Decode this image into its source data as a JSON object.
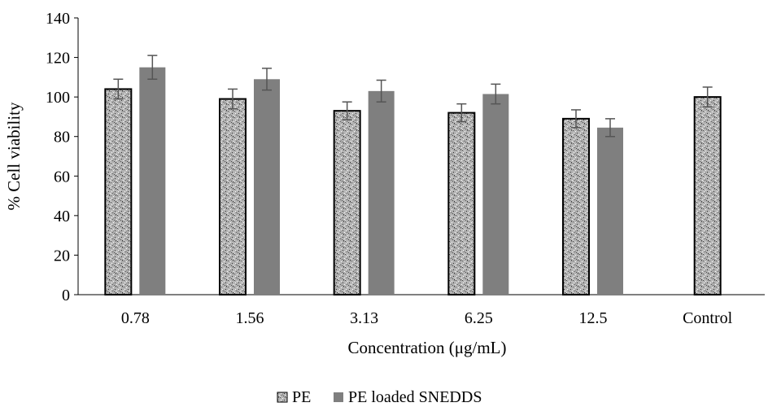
{
  "chart_data": {
    "type": "bar",
    "xlabel": "Concentration (μg/mL)",
    "ylabel": "% Cell viability",
    "ylim": [
      0,
      140
    ],
    "yticks": [
      0,
      20,
      40,
      60,
      80,
      100,
      120,
      140
    ],
    "categories": [
      "0.78",
      "1.56",
      "3.13",
      "6.25",
      "12.5",
      "Control"
    ],
    "grid": false,
    "legend_position": "bottom-center",
    "series": [
      {
        "name": "PE",
        "values": [
          104,
          99,
          93,
          92,
          89,
          100
        ],
        "errors": [
          5,
          5,
          4.5,
          4.5,
          4.5,
          5
        ],
        "color": "#b0b0b0",
        "pattern": "granite"
      },
      {
        "name": "PE loaded SNEDDS",
        "values": [
          115,
          109,
          103,
          101.5,
          84.5,
          null
        ],
        "errors": [
          6,
          5.5,
          5.5,
          5,
          4.5,
          null
        ],
        "color": "#7f7f7f",
        "pattern": "solid"
      }
    ]
  }
}
